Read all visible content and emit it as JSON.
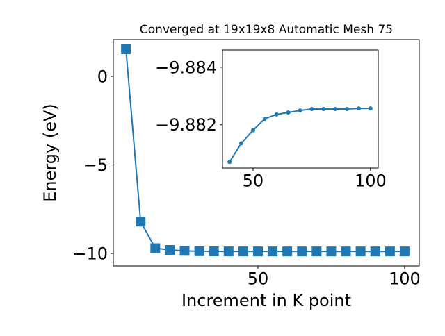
{
  "chart_data": [
    {
      "type": "line",
      "title": "Converged at 19x19x8 Automatic Mesh 75",
      "x_label": "Increment in K point",
      "y_label": "Energy (eV)",
      "x": [
        5,
        10,
        15,
        20,
        25,
        30,
        35,
        40,
        45,
        50,
        55,
        60,
        65,
        70,
        75,
        80,
        85,
        90,
        95,
        100
      ],
      "series": [
        {
          "color": "#1f77b4",
          "marker": "square",
          "values": [
            1.53,
            -8.2,
            -9.7,
            -9.8,
            -9.85,
            -9.87,
            -9.878,
            -9.8807,
            -9.8814,
            -9.8818,
            -9.8822,
            -9.8824,
            -9.8824,
            -9.8825,
            -9.8826,
            -9.8826,
            -9.8826,
            -9.8826,
            -9.8826,
            -9.8826
          ]
        }
      ],
      "xlim": [
        0.7,
        105
      ],
      "ylim": [
        -10.7,
        2.08
      ],
      "xticks": [
        50,
        100
      ],
      "yticks": [
        {
          "value": -10,
          "label": "−10"
        },
        {
          "value": -5,
          "label": "−5"
        },
        0
      ]
    },
    {
      "type": "line",
      "x": [
        40,
        45,
        50,
        55,
        60,
        65,
        70,
        75,
        80,
        85,
        90,
        95,
        100
      ],
      "series": [
        {
          "color": "#1f77b4",
          "marker": "circle",
          "values": [
            -9.88071,
            -9.88136,
            -9.88181,
            -9.88221,
            -9.88236,
            -9.88243,
            -9.8825,
            -9.88255,
            -9.88255,
            -9.88255,
            -9.88255,
            -9.88257,
            -9.88257
          ]
        }
      ],
      "xlim": [
        37,
        103.3
      ],
      "ylim": [
        -9.8805,
        -9.8846
      ],
      "xticks": [
        50,
        100
      ],
      "yticks": [
        {
          "value": -9.882,
          "label": "−9.882"
        },
        {
          "value": -9.884,
          "label": "−9.884"
        }
      ]
    }
  ]
}
